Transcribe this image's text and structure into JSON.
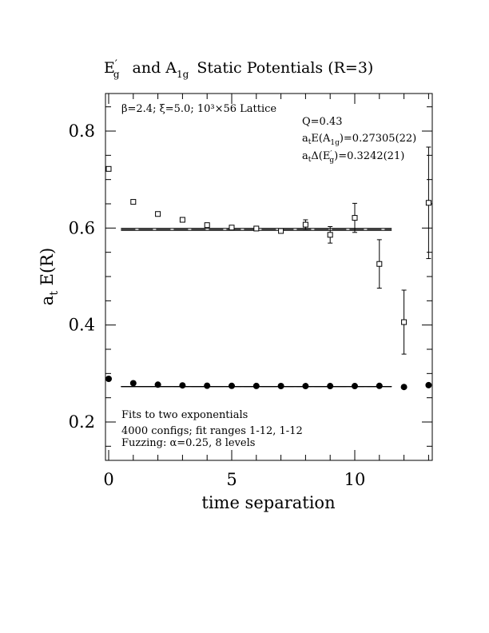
{
  "chart_data": {
    "type": "scatter",
    "title": {
      "eg_base": "E",
      "eg_prime": "′",
      "eg_sub": "g",
      "and_text": "and A",
      "a_sub": "1g",
      "rest": "Static Potentials (R=3)"
    },
    "xlabel": "time separation",
    "ylabel": {
      "base": "a",
      "sub": "t",
      "rest": " E(R)"
    },
    "xlim": [
      0,
      13
    ],
    "ylim": [
      0.12,
      0.88
    ],
    "xticks_major": [
      0,
      5,
      10
    ],
    "xtick_labels": [
      "0",
      "5",
      "10"
    ],
    "yticks_major": [
      0.2,
      0.4,
      0.6,
      0.8
    ],
    "ytick_labels": [
      "0.2",
      "0.4",
      "0.6",
      "0.8"
    ],
    "lattice_info": "β=2.4; ξ=5.0; 10³×56 Lattice",
    "fit_info": {
      "q": "Q=0.43",
      "energy_line": {
        "pre": "a",
        "pre_sub": "t",
        "mid": "E(A",
        "mid_sub": "1g",
        "post": ")=0.27305(22)"
      },
      "gap_line": {
        "pre": "a",
        "pre_sub": "t",
        "mid": "Δ(E",
        "mid_prime": "′",
        "mid_sub": "g",
        "post": ")=0.3242(21)"
      }
    },
    "notes": [
      "Fits to two exponentials",
      "4000 configs; fit ranges 1-12, 1-12",
      "Fuzzing: α=0.25, 8 levels"
    ],
    "series": [
      {
        "name": "E′g",
        "marker": "open-square",
        "points": [
          {
            "x": 0,
            "y": 0.722,
            "err": 0.003
          },
          {
            "x": 1,
            "y": 0.654,
            "err": 0.003
          },
          {
            "x": 2,
            "y": 0.629,
            "err": 0.003
          },
          {
            "x": 3,
            "y": 0.617,
            "err": 0.003
          },
          {
            "x": 4,
            "y": 0.606,
            "err": 0.003
          },
          {
            "x": 5,
            "y": 0.601,
            "err": 0.003
          },
          {
            "x": 6,
            "y": 0.599,
            "err": 0.004
          },
          {
            "x": 7,
            "y": 0.594,
            "err": 0.005
          },
          {
            "x": 8,
            "y": 0.607,
            "err": 0.01
          },
          {
            "x": 9,
            "y": 0.586,
            "err": 0.017
          },
          {
            "x": 10,
            "y": 0.621,
            "err": 0.03
          },
          {
            "x": 11,
            "y": 0.526,
            "err": 0.05
          },
          {
            "x": 12,
            "y": 0.406,
            "err": 0.066
          },
          {
            "x": 13,
            "y": 0.652,
            "err": 0.115
          }
        ],
        "fit": {
          "value": 0.5972,
          "err": 0.0021,
          "x_range": [
            0.5,
            11.5
          ]
        }
      },
      {
        "name": "A1g",
        "marker": "filled-circle",
        "points": [
          {
            "x": 0,
            "y": 0.289
          },
          {
            "x": 1,
            "y": 0.28
          },
          {
            "x": 2,
            "y": 0.277
          },
          {
            "x": 3,
            "y": 0.2755
          },
          {
            "x": 4,
            "y": 0.2748
          },
          {
            "x": 5,
            "y": 0.2745
          },
          {
            "x": 6,
            "y": 0.2743
          },
          {
            "x": 7,
            "y": 0.2742
          },
          {
            "x": 8,
            "y": 0.2741
          },
          {
            "x": 9,
            "y": 0.2741
          },
          {
            "x": 10,
            "y": 0.2741
          },
          {
            "x": 11,
            "y": 0.2745
          },
          {
            "x": 12,
            "y": 0.2722
          },
          {
            "x": 13,
            "y": 0.276
          }
        ],
        "fit": {
          "value": 0.27305,
          "err": 0.00022,
          "x_range": [
            0.5,
            11.5
          ]
        }
      }
    ]
  }
}
